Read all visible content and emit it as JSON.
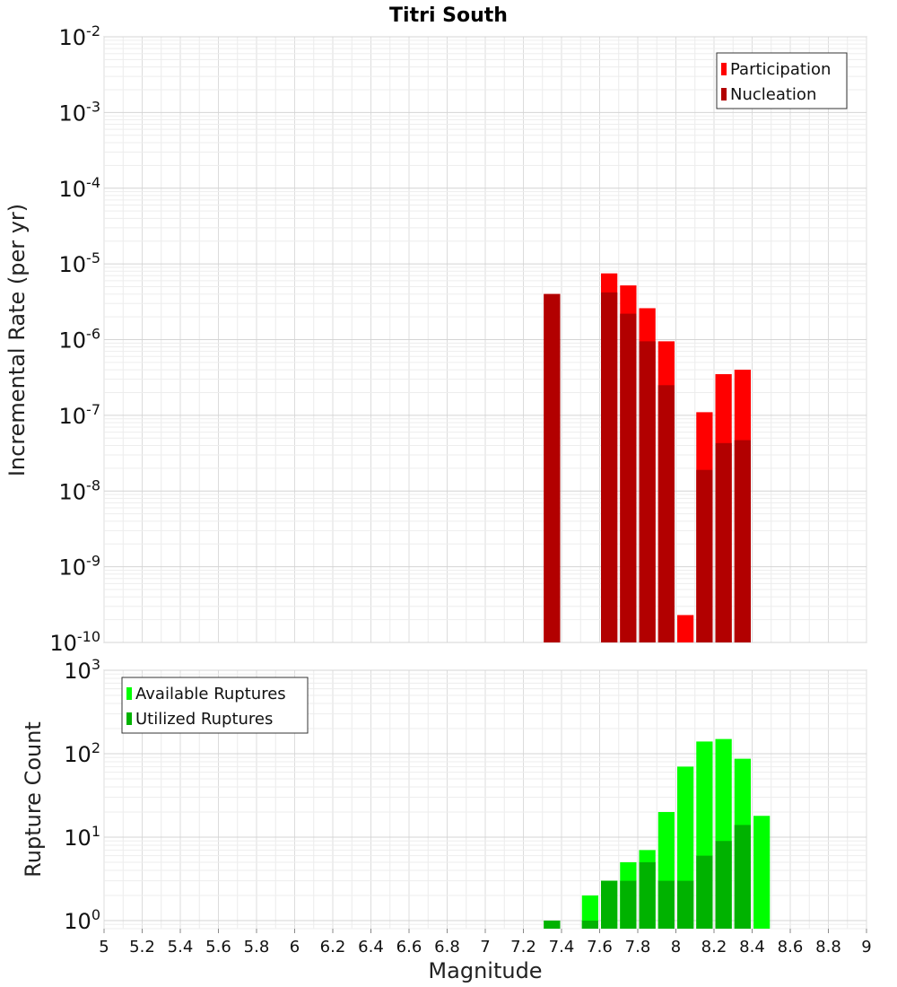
{
  "title": "Titri South",
  "shared_x": {
    "label": "Magnitude",
    "range": [
      5,
      9
    ],
    "ticks": [
      5,
      5.2,
      5.4,
      5.6,
      5.8,
      6,
      6.2,
      6.4,
      6.6,
      6.8,
      7,
      7.2,
      7.4,
      7.6,
      7.8,
      8,
      8.2,
      8.4,
      8.6,
      8.8,
      9
    ],
    "tick_labels": [
      "5",
      "5.2",
      "5.4",
      "5.6",
      "5.8",
      "6",
      "6.2",
      "6.4",
      "6.6",
      "6.8",
      "7",
      "7.2",
      "7.4",
      "7.6",
      "7.8",
      "8",
      "8.2",
      "8.4",
      "8.6",
      "8.8",
      "9"
    ]
  },
  "chart_data": [
    {
      "type": "bar",
      "title": "Titri South",
      "ylabel": "Incremental Rate (per yr)",
      "yscale": "log",
      "ylim": [
        1e-10,
        0.01
      ],
      "y_tick_exponents": [
        "-10",
        "-9",
        "-8",
        "-7",
        "-6",
        "-5",
        "-4",
        "-3",
        "-2"
      ],
      "y_tick_base": "10",
      "grid": true,
      "legend": "top-right",
      "series": [
        {
          "name": "Participation",
          "color": "#ff0000",
          "x": [
            7.35,
            7.65,
            7.75,
            7.85,
            7.95,
            8.05,
            8.15,
            8.25,
            8.35
          ],
          "values": [
            4e-06,
            7.5e-06,
            5.2e-06,
            2.6e-06,
            9.5e-07,
            2.3e-10,
            1.1e-07,
            3.5e-07,
            4e-07
          ]
        },
        {
          "name": "Nucleation",
          "color": "#b20000",
          "x": [
            7.35,
            7.65,
            7.75,
            7.85,
            7.95,
            8.15,
            8.25,
            8.35
          ],
          "values": [
            4e-06,
            4.2e-06,
            2.2e-06,
            9.5e-07,
            2.5e-07,
            1.9e-08,
            4.3e-08,
            4.7e-08
          ]
        }
      ]
    },
    {
      "type": "bar",
      "title": "",
      "xlabel": "Magnitude",
      "ylabel": "Rupture Count",
      "yscale": "log",
      "ylim": [
        0.8,
        1000
      ],
      "y_tick_exponents": [
        "0",
        "1",
        "2",
        "3"
      ],
      "y_tick_base": "10",
      "grid": true,
      "legend": "top-left",
      "series": [
        {
          "name": "Available Ruptures",
          "color": "#00ff00",
          "x": [
            7.35,
            7.55,
            7.65,
            7.75,
            7.85,
            7.95,
            8.05,
            8.15,
            8.25,
            8.35,
            8.45
          ],
          "values": [
            1,
            2,
            3,
            5,
            7,
            20,
            70,
            140,
            150,
            87,
            18
          ]
        },
        {
          "name": "Utilized Ruptures",
          "color": "#00b200",
          "x": [
            7.35,
            7.55,
            7.65,
            7.75,
            7.85,
            7.95,
            8.05,
            8.15,
            8.25,
            8.35
          ],
          "values": [
            1,
            1,
            3,
            3,
            5,
            3,
            3,
            6,
            9,
            14
          ]
        }
      ]
    }
  ]
}
